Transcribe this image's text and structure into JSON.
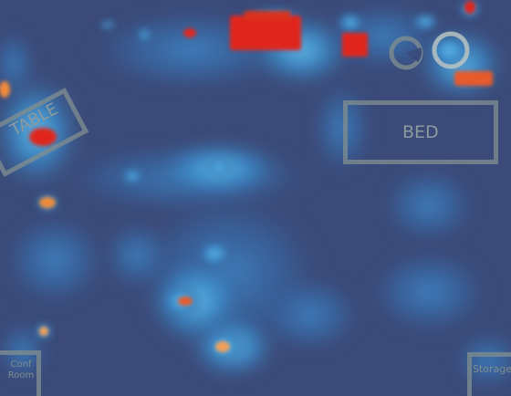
{
  "map": {
    "background_color": "#3b4a78",
    "labels": {
      "table": "TABLE",
      "bed": "BED",
      "conf_room": "Conf Room",
      "storage": "Storage"
    },
    "icons": {
      "pie": "pie-chart-icon",
      "ring": "circle-ring-icon"
    },
    "colors": {
      "hot": "#e0261a",
      "warm": "#f08a3a",
      "mid": "#55b8e8",
      "cool": "#2f71b3",
      "outline": "#7f8d8f"
    }
  }
}
